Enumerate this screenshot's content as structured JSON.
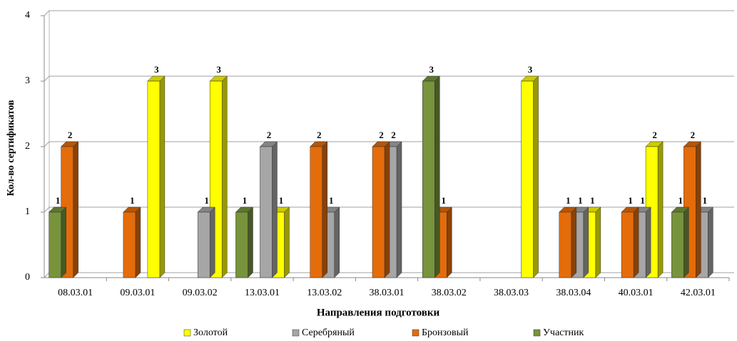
{
  "chart_data": {
    "type": "bar3d",
    "x_label": "Направления подготовки",
    "y_label": "Кол-во сертификатов",
    "categories": [
      "08.03.01",
      "09.03.01",
      "09.03.02",
      "13.03.01",
      "13.03.02",
      "38.03.01",
      "38.03.02",
      "38.03.03",
      "38.03.04",
      "40.03.01",
      "42.03.01"
    ],
    "series": [
      {
        "name": "Золотой",
        "color": "#ffff00",
        "values": [
          null,
          3,
          3,
          1,
          null,
          null,
          null,
          3,
          1,
          2,
          null
        ]
      },
      {
        "name": "Серебряный",
        "color": "#a6a6a6",
        "values": [
          null,
          null,
          1,
          2,
          1,
          2,
          null,
          null,
          1,
          1,
          1
        ]
      },
      {
        "name": "Бронзовый",
        "color": "#e46c0a",
        "values": [
          2,
          1,
          null,
          null,
          2,
          2,
          1,
          null,
          1,
          1,
          2
        ]
      },
      {
        "name": "Участник",
        "color": "#77933c",
        "values": [
          1,
          null,
          null,
          1,
          null,
          null,
          3,
          null,
          null,
          null,
          1
        ]
      }
    ],
    "ylim": [
      0,
      4
    ],
    "yticks": [
      0,
      1,
      2,
      3,
      4
    ],
    "grid": true,
    "legend": "bottom"
  }
}
